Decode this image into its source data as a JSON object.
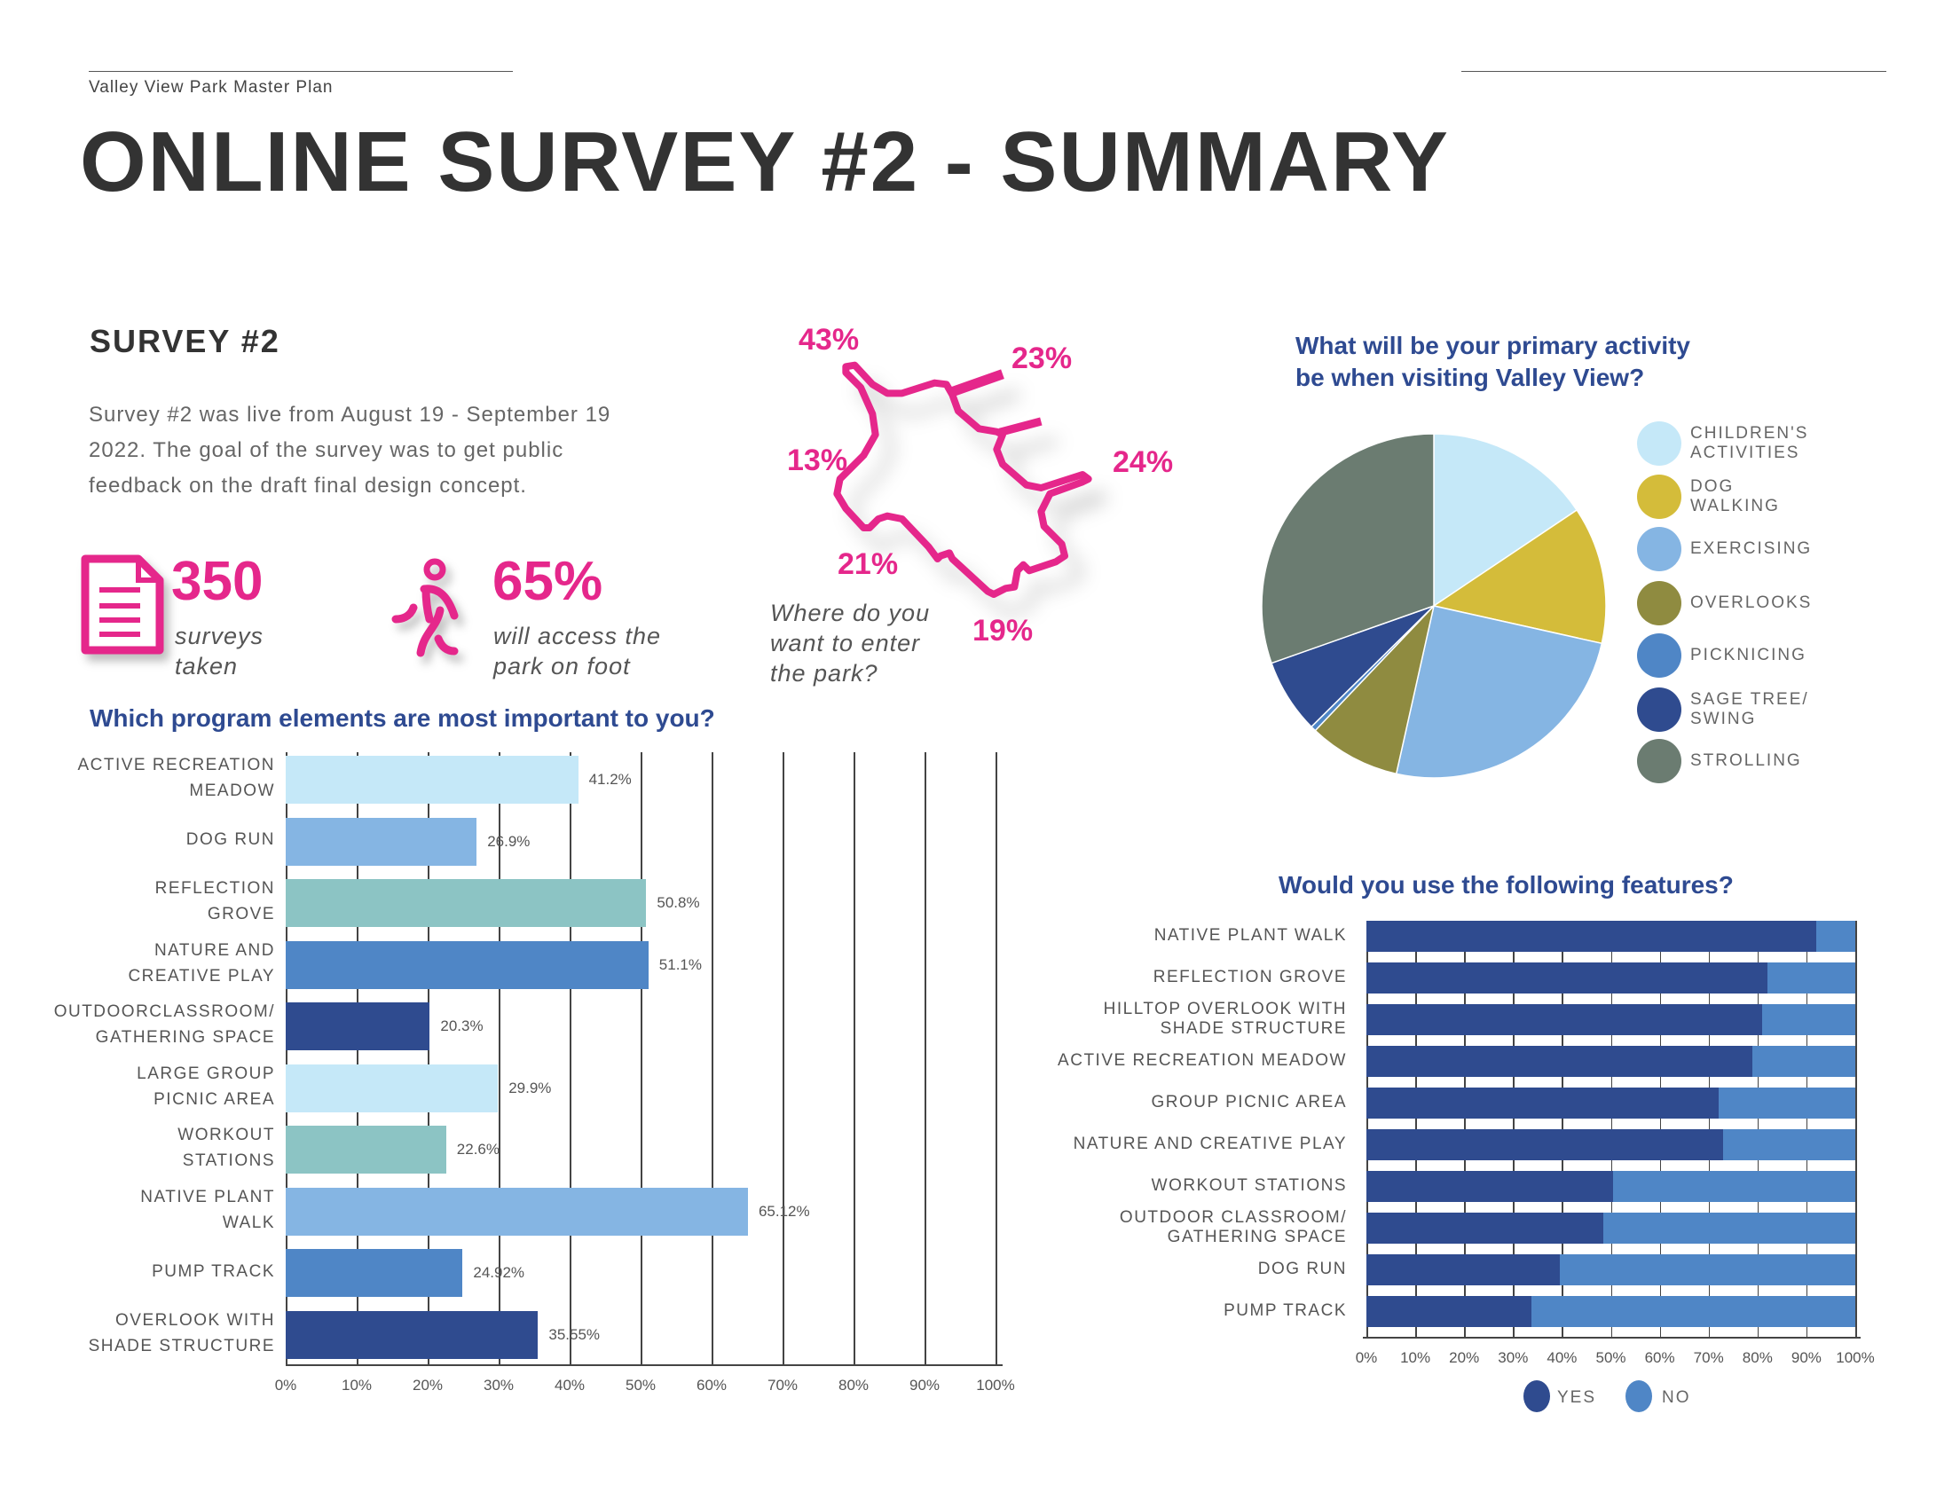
{
  "header": {
    "subtitle": "Valley View Park Master Plan",
    "title": "ONLINE SURVEY #2 - SUMMARY"
  },
  "survey": {
    "heading": "SURVEY #2",
    "description": "Survey #2 was live from August 19 - September 19 2022. The goal of the survey was to get public feedback on the draft final design concept.",
    "stats": [
      {
        "icon": "document-icon",
        "value": "350",
        "caption_1": "surveys",
        "caption_2": "taken"
      },
      {
        "icon": "walking-person-icon",
        "value": "65%",
        "caption_1": "will access the",
        "caption_2": "park on foot"
      }
    ]
  },
  "entry_map": {
    "question_1": "Where do you",
    "question_2": "want to enter",
    "question_3": "the park?",
    "labels": [
      "43%",
      "23%",
      "13%",
      "24%",
      "21%",
      "19%"
    ],
    "color": "#e5278b"
  },
  "chart_data": [
    {
      "type": "bar",
      "orientation": "horizontal",
      "title": "Which program elements are most important to you?",
      "categories": [
        [
          "ACTIVE RECREATION",
          "MEADOW"
        ],
        [
          "DOG RUN"
        ],
        [
          "REFLECTION",
          "GROVE"
        ],
        [
          "NATURE  AND",
          "CREATIVE PLAY"
        ],
        [
          "OUTDOORCLASSROOM/",
          "GATHERING SPACE"
        ],
        [
          "LARGE GROUP",
          "PICNIC AREA"
        ],
        [
          "WORKOUT",
          "STATIONS"
        ],
        [
          "NATIVE PLANT",
          "WALK"
        ],
        [
          "PUMP TRACK"
        ],
        [
          "OVERLOOK WITH",
          "SHADE STRUCTURE"
        ]
      ],
      "values": [
        41.2,
        26.9,
        50.8,
        51.1,
        20.3,
        29.9,
        22.6,
        65.12,
        24.92,
        35.55
      ],
      "value_labels": [
        "41.2%",
        "26.9%",
        "50.8%",
        "51.1%",
        "20.3%",
        "29.9%",
        "22.6%",
        "65.12%",
        "24.92%",
        "35.55%"
      ],
      "colors": [
        "#c5e8f8",
        "#85b5e3",
        "#8cc4c4",
        "#4f86c6",
        "#2f4b8f",
        "#c5e8f8",
        "#8cc4c4",
        "#85b5e3",
        "#4f86c6",
        "#2f4b8f"
      ],
      "xlim": [
        0,
        100
      ],
      "xticks": [
        "0%",
        "10%",
        "20%",
        "30%",
        "40%",
        "50%",
        "60%",
        "70%",
        "80%",
        "90%",
        "100%"
      ],
      "grid": true
    },
    {
      "type": "pie",
      "title_1": "What will be your primary activity",
      "title_2": "be when visiting Valley View?",
      "slices": [
        {
          "label_1": "CHILDREN'S",
          "label_2": "ACTIVITIES",
          "value": 15.6,
          "color": "#c5e8f8"
        },
        {
          "label_1": "DOG",
          "label_2": "WALKING",
          "value": 12.9,
          "color": "#d4bc3a"
        },
        {
          "label_1": "EXERCISING",
          "label_2": "",
          "value": 25.0,
          "color": "#85b5e3"
        },
        {
          "label_1": "OVERLOOKS",
          "label_2": "",
          "value": 8.6,
          "color": "#8f8b40"
        },
        {
          "label_1": "PICKNICING",
          "label_2": "",
          "value": 0.5,
          "color": "#4f86c6"
        },
        {
          "label_1": "SAGE TREE/",
          "label_2": "SWING",
          "value": 7.0,
          "color": "#2f4b8f"
        },
        {
          "label_1": "STROLLING",
          "label_2": "",
          "value": 30.4,
          "color": "#6b7c71"
        }
      ],
      "legend": "right"
    },
    {
      "type": "bar",
      "orientation": "horizontal",
      "stacked": true,
      "title": "Would you use the following features?",
      "categories": [
        [
          "NATIVE PLANT WALK"
        ],
        [
          "REFLECTION GROVE"
        ],
        [
          "HILLTOP OVERLOOK WITH",
          "SHADE STRUCTURE"
        ],
        [
          "ACTIVE RECREATION MEADOW"
        ],
        [
          "GROUP PICNIC AREA"
        ],
        [
          "NATURE AND CREATIVE PLAY"
        ],
        [
          "WORKOUT STATIONS"
        ],
        [
          "OUTDOOR CLASSROOM/",
          "GATHERING SPACE"
        ],
        [
          "DOG RUN"
        ],
        [
          "PUMP TRACK"
        ]
      ],
      "series": [
        {
          "name": "YES",
          "color": "#2f4b8f",
          "values": [
            92,
            82,
            81,
            79,
            72,
            73,
            50.5,
            48.5,
            39.6,
            33.7
          ]
        },
        {
          "name": "NO",
          "color": "#4f86c6",
          "values": [
            8,
            18,
            19,
            21,
            28,
            27,
            49.5,
            51.5,
            60.4,
            66.3
          ]
        }
      ],
      "xlim": [
        0,
        100
      ],
      "xticks": [
        "0%",
        "10%",
        "20%",
        "30%",
        "40%",
        "50%",
        "60%",
        "70%",
        "80%",
        "90%",
        "100%"
      ],
      "grid": true,
      "legend": "bottom"
    }
  ]
}
